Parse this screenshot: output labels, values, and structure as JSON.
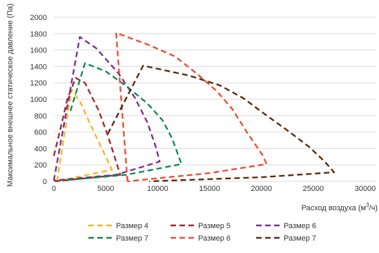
{
  "chart_data": {
    "type": "line",
    "xlabel": "Расход воздуха (м³/ч)",
    "xlabel_main": "Расход воздуха (м",
    "xlabel_sup": "3",
    "xlabel_end": "/ч)",
    "ylabel": "Максимальное внешнее статическое давление (Па)",
    "xlim": [
      0,
      30000
    ],
    "ylim": [
      0,
      2000
    ],
    "xticks": [
      0,
      5000,
      10000,
      15000,
      20000,
      25000,
      30000
    ],
    "yticks": [
      0,
      200,
      400,
      600,
      800,
      1000,
      1200,
      1400,
      1600,
      1800,
      2000
    ],
    "grid": "horizontal",
    "legend_position": "bottom",
    "series": [
      {
        "name": "Размер 4",
        "color": "#f5b62b",
        "points": [
          [
            300,
            0
          ],
          [
            1700,
            1120
          ],
          [
            2500,
            980
          ],
          [
            3500,
            700
          ],
          [
            5000,
            300
          ],
          [
            5600,
            140
          ],
          [
            300,
            0
          ]
        ]
      },
      {
        "name": "Размер 5",
        "color": "#a3292a",
        "points": [
          [
            0,
            310
          ],
          [
            600,
            620
          ],
          [
            1300,
            1000
          ],
          [
            2100,
            1260
          ],
          [
            3000,
            1200
          ],
          [
            4300,
            870
          ],
          [
            5200,
            560
          ],
          [
            5900,
            280
          ],
          [
            6400,
            80
          ],
          [
            100,
            0
          ]
        ]
      },
      {
        "name": "Размер 6",
        "color": "#7d2e91",
        "points": [
          [
            0,
            10
          ],
          [
            2500,
            1760
          ],
          [
            4100,
            1620
          ],
          [
            6200,
            1320
          ],
          [
            7800,
            1020
          ],
          [
            9000,
            720
          ],
          [
            9800,
            430
          ],
          [
            10200,
            240
          ],
          [
            6000,
            80
          ],
          [
            0,
            10
          ]
        ]
      },
      {
        "name": "Размер 7",
        "color": "#0e8a4a",
        "points": [
          [
            1600,
            860
          ],
          [
            3000,
            1440
          ],
          [
            5000,
            1340
          ],
          [
            7000,
            1160
          ],
          [
            9000,
            950
          ],
          [
            10500,
            740
          ],
          [
            11400,
            520
          ],
          [
            12300,
            210
          ],
          [
            7000,
            80
          ],
          [
            800,
            10
          ]
        ]
      },
      {
        "name": "Размер 6",
        "color": "#ec4d2f",
        "points": [
          [
            7100,
            0
          ],
          [
            6000,
            1810
          ],
          [
            9200,
            1660
          ],
          [
            11700,
            1520
          ],
          [
            13800,
            1310
          ],
          [
            15700,
            1100
          ],
          [
            17200,
            880
          ],
          [
            18700,
            580
          ],
          [
            20100,
            320
          ],
          [
            20500,
            210
          ],
          [
            15000,
            100
          ],
          [
            7100,
            0
          ]
        ]
      },
      {
        "name": "Размер 7",
        "color": "#5b2a0a",
        "points": [
          [
            5200,
            580
          ],
          [
            8600,
            1410
          ],
          [
            13000,
            1290
          ],
          [
            16000,
            1170
          ],
          [
            18300,
            1010
          ],
          [
            20200,
            830
          ],
          [
            22500,
            620
          ],
          [
            24600,
            420
          ],
          [
            26100,
            240
          ],
          [
            27000,
            110
          ],
          [
            20000,
            50
          ],
          [
            9200,
            0
          ]
        ]
      }
    ]
  }
}
